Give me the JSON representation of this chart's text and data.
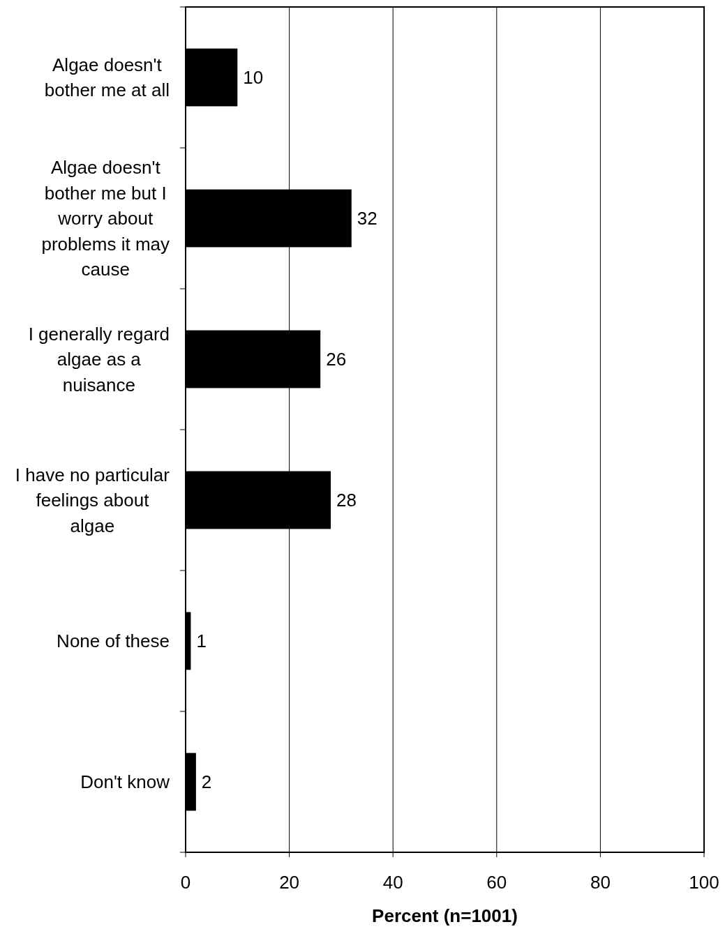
{
  "chart_data": {
    "type": "bar",
    "orientation": "horizontal",
    "xlabel": "Percent (n=1001)",
    "categories": [
      "Algae doesn't bother me at all",
      "Algae doesn't bother me but I worry about problems it may cause",
      "I generally regard algae as a nuisance",
      "I have no particular feelings about algae",
      "None of these",
      "Don't know"
    ],
    "values": [
      10,
      32,
      26,
      28,
      1,
      2
    ],
    "color": "#000000",
    "xlim": [
      0,
      100
    ],
    "xticks": [
      0,
      20,
      40,
      60,
      80,
      100
    ],
    "grid": "x",
    "data_labels": true
  }
}
